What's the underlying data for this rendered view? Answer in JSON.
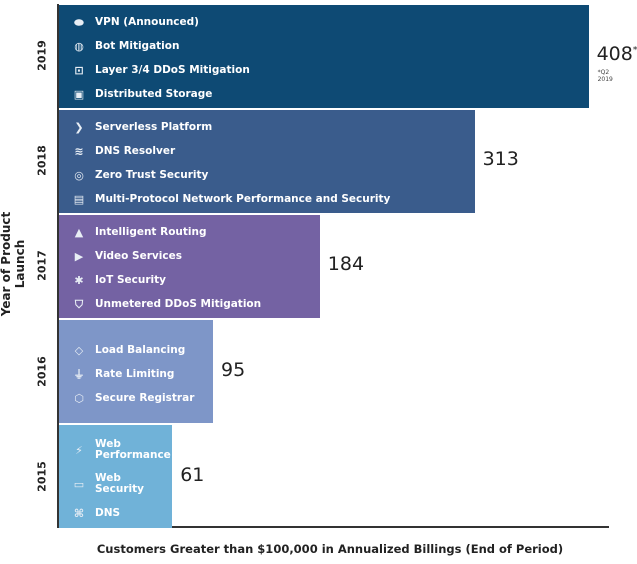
{
  "chart_data": {
    "type": "bar",
    "orientation": "horizontal",
    "xlabel": "Customers Greater than $100,000 in Annualized Billings (End of Period)",
    "ylabel": "Year of Product Launch",
    "categories": [
      "2019",
      "2018",
      "2017",
      "2016",
      "2015"
    ],
    "values": [
      408,
      313,
      184,
      95,
      61
    ],
    "value_labels": [
      "408",
      "313",
      "184",
      "95",
      "61"
    ],
    "value_note": {
      "marker": "*",
      "text": "*Q2 2019"
    },
    "colors": [
      "#0e4a74",
      "#3a5c8c",
      "#7462a3",
      "#7e96c8",
      "#70b2d8"
    ],
    "products": [
      [
        {
          "icon": "warp-icon",
          "label": "VPN (Announced)"
        },
        {
          "icon": "bot-icon",
          "label": "Bot Mitigation"
        },
        {
          "icon": "ddos-scan-icon",
          "label": "Layer 3/4 DDoS Mitigation"
        },
        {
          "icon": "storage-icon",
          "label": "Distributed Storage"
        }
      ],
      [
        {
          "icon": "workers-icon",
          "label": "Serverless Platform"
        },
        {
          "icon": "dns-resolver-icon",
          "label": "DNS Resolver"
        },
        {
          "icon": "access-icon",
          "label": "Zero Trust Security"
        },
        {
          "icon": "spectrum-icon",
          "label": "Multi-Protocol Network Performance and Security"
        }
      ],
      [
        {
          "icon": "routing-icon",
          "label": "Intelligent Routing"
        },
        {
          "icon": "video-icon",
          "label": "Video Services"
        },
        {
          "icon": "iot-icon",
          "label": "IoT Security"
        },
        {
          "icon": "shield-icon",
          "label": "Unmetered DDoS Mitigation"
        }
      ],
      [
        {
          "icon": "load-balancing-icon",
          "label": "Load Balancing"
        },
        {
          "icon": "funnel-icon",
          "label": "Rate Limiting"
        },
        {
          "icon": "registrar-shield-icon",
          "label": "Secure Registrar"
        }
      ],
      [
        {
          "icon": "web-performance-icon",
          "label": "Web Performance"
        },
        {
          "icon": "web-security-icon",
          "label": "Web Security"
        },
        {
          "icon": "dns-icon",
          "label": "DNS"
        }
      ]
    ]
  }
}
